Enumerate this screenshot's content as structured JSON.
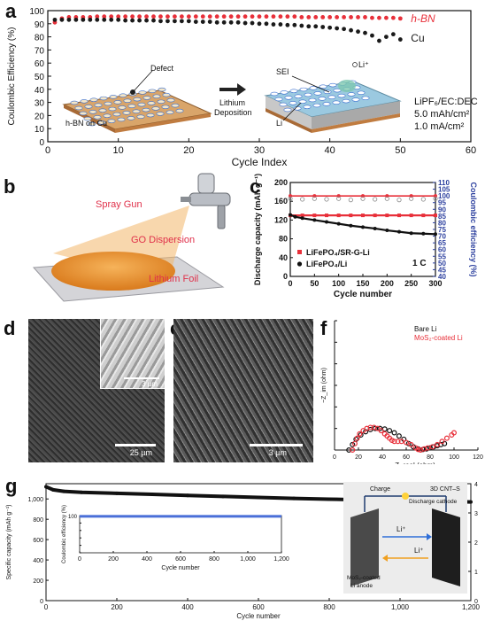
{
  "panels": {
    "a": {
      "label": "a",
      "chart_data": {
        "type": "scatter",
        "ylabel": "Coulombic Efficiency (%)",
        "xlabel": "Cycle Index",
        "xlim": [
          0,
          60
        ],
        "ylim": [
          0,
          100
        ],
        "xticks": [
          0,
          10,
          20,
          30,
          40,
          50,
          60
        ],
        "yticks": [
          0,
          10,
          20,
          30,
          40,
          50,
          60,
          70,
          80,
          90,
          100
        ],
        "series": [
          {
            "name": "h-BN",
            "color": "#e8303a",
            "x": [
              1,
              2,
              3,
              4,
              5,
              6,
              7,
              8,
              9,
              10,
              11,
              12,
              13,
              14,
              15,
              16,
              17,
              18,
              19,
              20,
              21,
              22,
              23,
              24,
              25,
              26,
              27,
              28,
              29,
              30,
              31,
              32,
              33,
              34,
              35,
              36,
              37,
              38,
              39,
              40,
              41,
              42,
              43,
              44,
              45,
              46,
              47,
              48,
              49,
              50
            ],
            "y": [
              91,
              94,
              95,
              95,
              95,
              95,
              95.5,
              95.5,
              95.5,
              95.5,
              95.5,
              95.5,
              95.5,
              95.5,
              95.5,
              95.5,
              95.5,
              95.5,
              95.5,
              95.5,
              95.5,
              95.5,
              95.5,
              95.5,
              95.5,
              95.5,
              95.5,
              95.5,
              95.5,
              95.5,
              95.5,
              95.5,
              95.5,
              95.5,
              95.5,
              95,
              95,
              95,
              95,
              95,
              95,
              95,
              95,
              95,
              95,
              94.5,
              94.5,
              94.5,
              94.5,
              94
            ]
          },
          {
            "name": "Cu",
            "color": "#1a1a1a",
            "x": [
              1,
              2,
              3,
              4,
              5,
              6,
              7,
              8,
              9,
              10,
              11,
              12,
              13,
              14,
              15,
              16,
              17,
              18,
              19,
              20,
              21,
              22,
              23,
              24,
              25,
              26,
              27,
              28,
              29,
              30,
              31,
              32,
              33,
              34,
              35,
              36,
              37,
              38,
              39,
              40,
              41,
              42,
              43,
              44,
              45,
              46,
              47,
              48,
              49,
              50
            ],
            "y": [
              93,
              93,
              93,
              93,
              93,
              93,
              93,
              93,
              93,
              93,
              92.5,
              92.5,
              92.5,
              92.5,
              92.5,
              92,
              92,
              92,
              92,
              92,
              91.5,
              91.5,
              91.5,
              91,
              91,
              91,
              91,
              90.5,
              90.5,
              90,
              90,
              89.5,
              89.5,
              89,
              89,
              88.5,
              88,
              88,
              87.5,
              87,
              86.5,
              86,
              85,
              84,
              83,
              81,
              77,
              80,
              82,
              78
            ]
          }
        ],
        "legend": [
          "h-BN",
          "Cu"
        ]
      },
      "inset_text": {
        "defect": "Defect",
        "sei": "SEI",
        "li_ion": "Li⁺",
        "hbn_on_cu": "h-BN on Cu",
        "lithium": "Lithium",
        "deposition": "Deposition",
        "li": "Li"
      },
      "conditions": [
        "LiPF₆/EC:DEC",
        "5.0 mAh/cm²",
        "1.0 mA/cm²"
      ]
    },
    "b": {
      "label": "b",
      "spray_gun": "Spray Gun",
      "go_dispersion": "GO Dispersion",
      "lithium_foil": "Lithium Foil"
    },
    "c": {
      "label": "c",
      "chart_data": {
        "type": "scatter",
        "xlabel": "Cycle number",
        "ylabel": "Discharge capacity (mAh g⁻¹)",
        "ylabel_right": "Coulombic efficiency (%)",
        "xlim": [
          0,
          300
        ],
        "ylim": [
          0,
          200
        ],
        "ylim_right": [
          40,
          110
        ],
        "xticks": [
          0,
          50,
          100,
          150,
          200,
          250,
          300
        ],
        "yticks": [
          0,
          40,
          80,
          120,
          160,
          200
        ],
        "yticks_right": [
          40,
          45,
          50,
          55,
          60,
          65,
          70,
          75,
          80,
          85,
          90,
          95,
          100,
          105,
          110
        ],
        "rate": "1 C",
        "series": [
          {
            "name": "LiFePO₄/SR-G-Li",
            "axis": "left",
            "color": "#e8303a",
            "x": [
              0,
              25,
              50,
              75,
              100,
              125,
              150,
              175,
              200,
              225,
              250,
              275,
              300
            ],
            "y": [
              130,
              130,
              130,
              130,
              130,
              130,
              130,
              130,
              130,
              130,
              130,
              130,
              130
            ]
          },
          {
            "name": "LiFePO₄/Li",
            "axis": "left",
            "color": "#111111",
            "x": [
              0,
              10,
              25,
              50,
              75,
              100,
              125,
              150,
              175,
              200,
              225,
              250,
              275,
              300
            ],
            "y": [
              131,
              127,
              124,
              120,
              116,
              112,
              108,
              105,
              102,
              98,
              95,
              92,
              91,
              90
            ]
          },
          {
            "name": "CE LiFePO₄/SR-G-Li",
            "axis": "right",
            "color": "#e8303a",
            "x": [
              0,
              50,
              100,
              150,
              200,
              250,
              300
            ],
            "y": [
              100,
              100,
              100,
              100,
              100,
              100,
              100
            ]
          },
          {
            "name": "CE LiFePO₄/Li",
            "axis": "right",
            "color": "#888888",
            "x": [
              0,
              25,
              50,
              75,
              100,
              125,
              150,
              175,
              200,
              225,
              250,
              275,
              300
            ],
            "y": [
              98,
              97.5,
              98,
              97.5,
              98,
              97,
              98,
              97.5,
              98,
              97,
              98,
              97.5,
              98
            ]
          }
        ],
        "legend": [
          "LiFePO₄/SR-G-Li",
          "LiFePO₄/Li"
        ],
        "legend_position": "bottom-left"
      }
    },
    "d": {
      "label": "d",
      "scale_main": "25 µm",
      "scale_inset": "3 µm"
    },
    "e": {
      "label": "e",
      "scale": "3 µm"
    },
    "f": {
      "label": "f",
      "chart_data": {
        "type": "scatter",
        "xlabel": "Z_real (ohm)",
        "ylabel": "−Z_im (ohm)",
        "xlim": [
          0,
          120
        ],
        "ylim": [
          0,
          120
        ],
        "xticks": [
          0,
          20,
          40,
          60,
          80,
          100,
          120
        ],
        "yticks": [
          0,
          20,
          40,
          60,
          80,
          100,
          120
        ],
        "series": [
          {
            "name": "Bare Li",
            "color": "#111111",
            "x": [
              12,
              15,
              18,
              22,
              26,
              30,
              34,
              38,
              42,
              46,
              50,
              54,
              58,
              62,
              66,
              70,
              74,
              77,
              80,
              83,
              86,
              89,
              92
            ],
            "y": [
              0,
              5,
              10,
              14,
              17,
              19,
              20,
              20,
              19.5,
              18,
              16,
              13,
              10,
              6,
              3,
              1,
              0.5,
              1,
              2,
              3,
              4,
              5,
              6
            ]
          },
          {
            "name": "MoS₂-coated Li",
            "color": "#e8303a",
            "x": [
              15,
              17,
              19,
              21,
              24,
              27,
              30,
              33,
              36,
              39,
              42,
              44,
              46,
              48,
              50,
              53,
              56,
              60,
              64,
              68,
              70,
              72,
              75,
              78,
              82,
              86,
              90,
              94,
              98,
              100
            ],
            "y": [
              0,
              6,
              11,
              15,
              18,
              20,
              21,
              21,
              20,
              18,
              15,
              13,
              11,
              9,
              8,
              8,
              8,
              7,
              5,
              2,
              0.5,
              0,
              1,
              2,
              3,
              5,
              8,
              11,
              14,
              16
            ]
          }
        ],
        "legend": [
          "Bare Li",
          "MoS₂-coated Li"
        ],
        "legend_position": "top-right"
      }
    },
    "g": {
      "label": "g",
      "chart_data": {
        "type": "scatter",
        "xlabel": "Cycle number",
        "ylabel": "Specific capacity (mAh g⁻¹)",
        "xlim": [
          0,
          1200
        ],
        "ylim": [
          0,
          1150
        ],
        "ylim_right": [
          0,
          4
        ],
        "xticks": [
          0,
          200,
          400,
          600,
          800,
          1000,
          1200
        ],
        "xticklabels": [
          "0",
          "200",
          "400",
          "600",
          "800",
          "1,000",
          "1,200"
        ],
        "yticks": [
          0,
          200,
          400,
          600,
          800,
          1000
        ],
        "yticklabels": [
          "0",
          "200",
          "400",
          "600",
          "800",
          "1,000"
        ],
        "yticks_right": [
          0,
          1,
          2,
          3,
          4
        ],
        "series": [
          {
            "name": "capacity",
            "color": "#111111",
            "x": [
              0,
              20,
              50,
              100,
              200,
              300,
              400,
              500,
              600,
              700,
              800,
              900,
              1000,
              1100,
              1200
            ],
            "y": [
              1120,
              1090,
              1075,
              1065,
              1055,
              1045,
              1035,
              1025,
              1015,
              1005,
              998,
              990,
              985,
              978,
              970
            ]
          }
        ],
        "inset": {
          "xlabel": "Cycle number",
          "ylabel": "Coulombic efficiency (%)",
          "xlim": [
            0,
            1200
          ],
          "ylim": [
            0,
            100
          ],
          "xticks": [
            0,
            200,
            400,
            600,
            800,
            1000,
            1200
          ],
          "xticklabels": [
            "0",
            "200",
            "400",
            "600",
            "800",
            "1,000",
            "1,200"
          ],
          "yticks": [
            0,
            10,
            20,
            30,
            40,
            50,
            60,
            70,
            80,
            90,
            100
          ],
          "value": 98,
          "color": "#4a6fd8"
        }
      },
      "schematic": {
        "charge": "Charge",
        "cathode_1": "3D CNT–S",
        "cathode_2": "Discharge cathode",
        "li_ion": "Li⁺",
        "anode_1": "MoS₂-coated",
        "anode_2": "Li anode"
      }
    }
  }
}
